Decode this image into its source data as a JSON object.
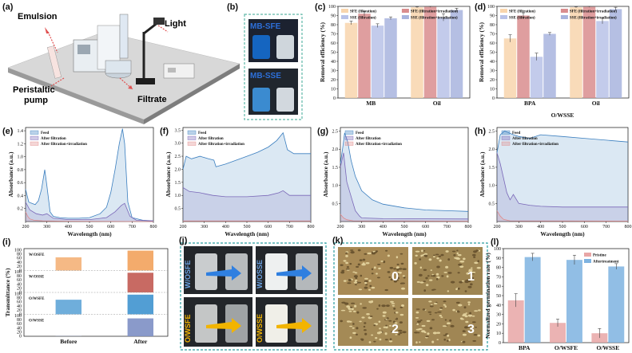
{
  "panel_labels": [
    "(a)",
    "(b)",
    "(c)",
    "(d)",
    "(e)",
    "(f)",
    "(g)",
    "(h)",
    "(i)",
    "(j)",
    "(k)",
    "(l)"
  ],
  "schematic": {
    "emulsion": "Emulsion",
    "light": "Light",
    "pump": "Peristaltic pump",
    "filtrate": "Filtrate"
  },
  "photo_b": {
    "top": "MB-SFE",
    "bottom": "MB-SSE"
  },
  "photo_j": {
    "tl": "W/OSFE",
    "tr": "W/OSSE",
    "bl": "O/WSFE",
    "br": "O/WSSE"
  },
  "photo_k": {
    "labels": [
      "0",
      "1",
      "2",
      "3"
    ]
  },
  "colors": {
    "sfe_f": "#f8d5ad",
    "sfe_i": "#d98d8e",
    "sse_f": "#b8c2e8",
    "sse_i": "#a8b4de",
    "feed": "#3a7ebf",
    "filt": "#7a68b8",
    "irr": "#e08a8a",
    "pristine": "#e8a6a6",
    "after": "#7eb3e0"
  },
  "chart_data": [
    {
      "id": "c",
      "type": "bar",
      "ylabel": "Removal efficiency (%)",
      "ylim": [
        0,
        100
      ],
      "yticks": [
        0,
        10,
        20,
        30,
        40,
        50,
        60,
        70,
        80,
        90,
        100
      ],
      "categories": [
        "MB",
        "Oil"
      ],
      "series": [
        {
          "name": "SFE (filtration)",
          "values": [
            82,
            99
          ],
          "err": [
            2,
            0.5
          ]
        },
        {
          "name": "SFE (filtration+irradiation)",
          "values": [
            92,
            99.5
          ],
          "err": [
            2.5,
            0.5
          ]
        },
        {
          "name": "SSE (filtration)",
          "values": [
            79,
            88
          ],
          "err": [
            2,
            4
          ]
        },
        {
          "name": "SSE (filtration+irradiation)",
          "values": [
            87,
            96
          ],
          "err": [
            1.5,
            2
          ]
        }
      ]
    },
    {
      "id": "d",
      "type": "bar",
      "title": "O/WSSE",
      "ylabel": "Removal efficiency (%)",
      "ylim": [
        0,
        100
      ],
      "yticks": [
        0,
        10,
        20,
        30,
        40,
        50,
        60,
        70,
        80,
        90,
        100
      ],
      "categories": [
        "BPA",
        "Oil"
      ],
      "series": [
        {
          "name": "SFE (filtration)",
          "values": [
            65,
            99
          ],
          "err": [
            4,
            0.5
          ]
        },
        {
          "name": "SFE (filtration+irradiation)",
          "values": [
            90,
            99.5
          ],
          "err": [
            3,
            0.5
          ]
        },
        {
          "name": "SSE (filtration)",
          "values": [
            45,
            84
          ],
          "err": [
            4,
            3
          ]
        },
        {
          "name": "SSE (filtration+irradiation)",
          "values": [
            70,
            97
          ],
          "err": [
            1.5,
            2
          ]
        }
      ]
    },
    {
      "id": "e",
      "type": "area",
      "xlabel": "Wavelength (nm)",
      "ylabel": "Absorbance (a.u.)",
      "xlim": [
        200,
        800
      ],
      "ylim": [
        0,
        1.45
      ],
      "xticks": [
        200,
        300,
        400,
        500,
        600,
        700,
        800
      ],
      "yticks": [
        0.2,
        0.4,
        0.6,
        0.8,
        1.0,
        1.2,
        1.4
      ],
      "legend": [
        "Feed",
        "After filtration",
        "After filtration+irradiation"
      ],
      "series": [
        {
          "name": "Feed",
          "x": [
            200,
            215,
            230,
            245,
            260,
            275,
            290,
            300,
            315,
            330,
            360,
            400,
            450,
            500,
            550,
            580,
            600,
            620,
            640,
            655,
            665,
            680,
            700,
            750,
            800
          ],
          "y": [
            0.5,
            0.3,
            0.28,
            0.26,
            0.32,
            0.5,
            0.8,
            0.55,
            0.15,
            0.08,
            0.06,
            0.05,
            0.05,
            0.06,
            0.12,
            0.22,
            0.45,
            0.8,
            1.2,
            1.43,
            1.2,
            0.3,
            0.06,
            0.02,
            0.01
          ]
        },
        {
          "name": "After filtration",
          "x": [
            200,
            220,
            250,
            280,
            300,
            330,
            400,
            500,
            580,
            620,
            650,
            665,
            690,
            720,
            800
          ],
          "y": [
            0.3,
            0.18,
            0.12,
            0.1,
            0.12,
            0.05,
            0.03,
            0.03,
            0.06,
            0.15,
            0.25,
            0.28,
            0.08,
            0.02,
            0.01
          ]
        },
        {
          "name": "After filtration+irradiation",
          "x": [
            200,
            210,
            220,
            240,
            280,
            400,
            800
          ],
          "y": [
            0.15,
            0.08,
            0.04,
            0.02,
            0.01,
            0.005,
            0.0
          ]
        }
      ]
    },
    {
      "id": "f",
      "type": "area",
      "xlabel": "Wavelength (nm)",
      "ylabel": "Absorbance (a.u.)",
      "xlim": [
        200,
        800
      ],
      "ylim": [
        0,
        3.6
      ],
      "xticks": [
        200,
        300,
        400,
        500,
        600,
        700,
        800
      ],
      "yticks": [
        0.5,
        1.0,
        1.5,
        2.0,
        2.5,
        3.0,
        3.5
      ],
      "legend": [
        "Feed",
        "After filtration",
        "After filtration+irradiation"
      ],
      "series": [
        {
          "name": "Feed",
          "x": [
            200,
            215,
            240,
            280,
            320,
            345,
            355,
            400,
            450,
            500,
            550,
            600,
            640,
            670,
            690,
            720,
            800
          ],
          "y": [
            2.0,
            2.5,
            2.4,
            2.5,
            2.4,
            2.35,
            2.1,
            2.2,
            2.35,
            2.5,
            2.65,
            2.85,
            3.1,
            3.4,
            2.75,
            2.6,
            2.6
          ]
        },
        {
          "name": "After filtration",
          "x": [
            200,
            230,
            280,
            340,
            400,
            500,
            600,
            650,
            670,
            700,
            800
          ],
          "y": [
            1.3,
            1.15,
            1.1,
            1.0,
            0.95,
            0.95,
            1.0,
            1.1,
            1.18,
            1.0,
            1.0
          ]
        },
        {
          "name": "After filtration+irradiation",
          "x": [
            200,
            300,
            500,
            800
          ],
          "y": [
            0.02,
            0.02,
            0.02,
            0.02
          ]
        }
      ]
    },
    {
      "id": "g",
      "type": "area",
      "xlabel": "Wavelength (nm)",
      "ylabel": "Absorbance (a.u.)",
      "xlim": [
        200,
        800
      ],
      "ylim": [
        0,
        2.6
      ],
      "xticks": [
        200,
        300,
        400,
        500,
        600,
        700,
        800
      ],
      "yticks": [
        0.5,
        1.0,
        1.5,
        2.0,
        2.5
      ],
      "legend": [
        "Feed",
        "After filtration",
        "After filtration+irradiation"
      ],
      "series": [
        {
          "name": "Feed",
          "x": [
            200,
            210,
            220,
            235,
            250,
            270,
            300,
            350,
            400,
            500,
            600,
            700,
            800
          ],
          "y": [
            1.6,
            2.0,
            2.45,
            2.2,
            1.7,
            1.25,
            0.85,
            0.6,
            0.48,
            0.38,
            0.32,
            0.3,
            0.28
          ]
        },
        {
          "name": "After filtration",
          "x": [
            200,
            215,
            230,
            250,
            270,
            290,
            300,
            400,
            800
          ],
          "y": [
            1.5,
            1.9,
            1.1,
            0.7,
            0.3,
            0.15,
            0.1,
            0.08,
            0.07
          ]
        },
        {
          "name": "After filtration+irradiation",
          "x": [
            200,
            215,
            230,
            260,
            800
          ],
          "y": [
            0.2,
            0.1,
            0.05,
            0.02,
            0.01
          ]
        }
      ]
    },
    {
      "id": "h",
      "type": "area",
      "xlabel": "Wavelength (nm)",
      "ylabel": "Absorbance (a.u.)",
      "xlim": [
        200,
        800
      ],
      "ylim": [
        0,
        2.6
      ],
      "xticks": [
        200,
        300,
        400,
        500,
        600,
        700,
        800
      ],
      "yticks": [
        0.5,
        1.0,
        1.5,
        2.0,
        2.5
      ],
      "legend": [
        "Feed",
        "After filtration",
        "After filtration+irradiation"
      ],
      "series": [
        {
          "name": "Feed",
          "x": [
            200,
            215,
            235,
            255,
            275,
            300,
            350,
            400,
            500,
            600,
            700,
            800
          ],
          "y": [
            1.9,
            2.4,
            2.5,
            2.45,
            2.4,
            2.35,
            2.3,
            2.4,
            2.35,
            2.3,
            2.25,
            2.2
          ]
        },
        {
          "name": "After filtration",
          "x": [
            200,
            215,
            230,
            245,
            260,
            275,
            300,
            350,
            400,
            500,
            800
          ],
          "y": [
            1.9,
            1.6,
            1.2,
            0.8,
            0.6,
            0.75,
            0.5,
            0.45,
            0.42,
            0.4,
            0.4
          ]
        },
        {
          "name": "After filtration+irradiation",
          "x": [
            200,
            215,
            230,
            260,
            800
          ],
          "y": [
            0.3,
            0.15,
            0.06,
            0.02,
            0.01
          ]
        }
      ]
    },
    {
      "id": "i",
      "type": "bar",
      "ylabel": "Transmittance (%)",
      "categories": [
        "Before",
        "After"
      ],
      "ylim": [
        0,
        100
      ],
      "yticks": [
        0,
        20,
        40,
        60,
        80,
        100
      ],
      "groups": [
        {
          "name": "W/OSFE",
          "color": "#f2a25c",
          "values": [
            65,
            98
          ]
        },
        {
          "name": "W/OSSE",
          "color": "#c25a52",
          "values": [
            0,
            97
          ]
        },
        {
          "name": "O/WSFE",
          "color": "#3f93cf",
          "values": [
            72,
            97
          ]
        },
        {
          "name": "O/WSSE",
          "color": "#7d8fc4",
          "values": [
            1,
            88
          ]
        }
      ]
    },
    {
      "id": "l",
      "type": "bar",
      "ylabel": "Normalized germination rate (%)",
      "ylim": [
        0,
        100
      ],
      "yticks": [
        0,
        10,
        20,
        30,
        40,
        50,
        60,
        70,
        80,
        90,
        100
      ],
      "categories": [
        "BPA",
        "O/WSFE",
        "O/WSSE"
      ],
      "series": [
        {
          "name": "Pristine",
          "values": [
            45,
            21,
            10
          ],
          "err": [
            7,
            4,
            5
          ]
        },
        {
          "name": "Aftertreatment",
          "values": [
            91,
            88,
            81
          ],
          "err": [
            4,
            5,
            3
          ]
        }
      ]
    }
  ]
}
